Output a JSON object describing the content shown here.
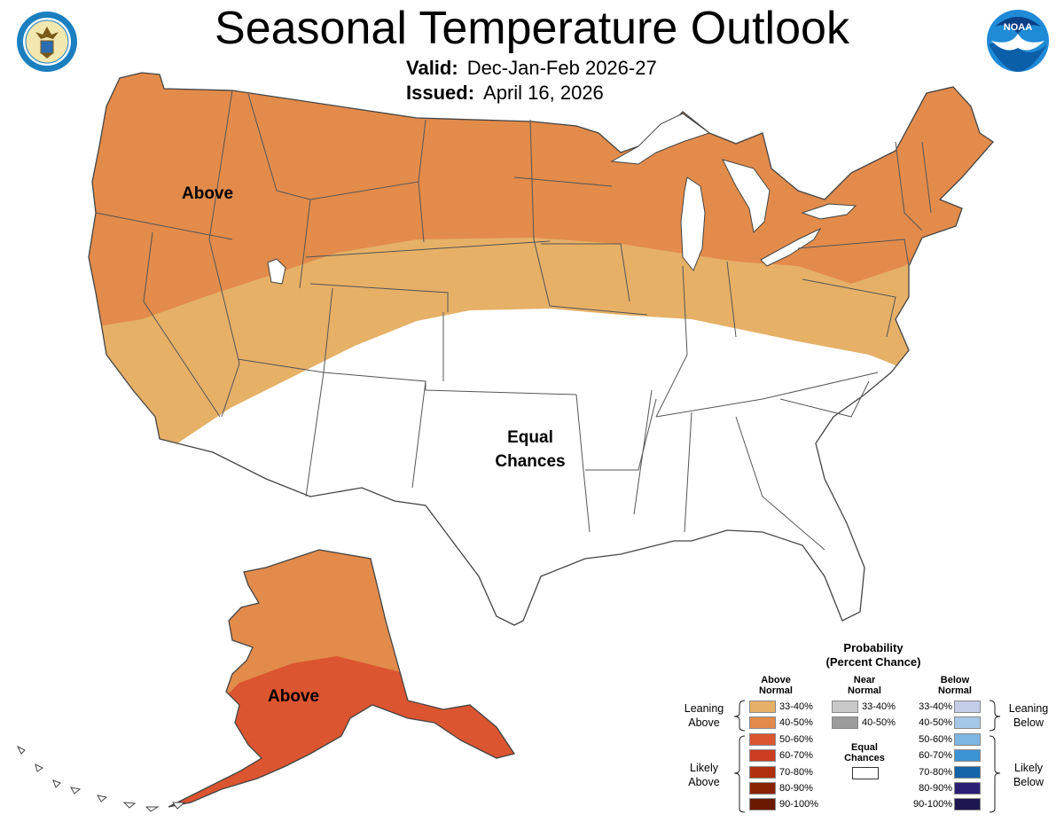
{
  "header": {
    "title": "Seasonal Temperature Outlook",
    "valid_label": "Valid:",
    "valid_value": "Dec-Jan-Feb 2026-27",
    "issued_label": "Issued:",
    "issued_value": "April 16, 2026"
  },
  "logos": {
    "left": "department-of-commerce-seal",
    "right": "noaa-logo",
    "noaa_text": "NOAA"
  },
  "map": {
    "labels": {
      "conus_above": "Above",
      "equal_1": "Equal",
      "equal_2": "Chances",
      "alaska_above": "Above"
    },
    "categories": {
      "conus_north": {
        "category": "Above Normal",
        "probability": "40-50%",
        "color": "#E28B4B"
      },
      "conus_middle": {
        "category": "Above Normal",
        "probability": "33-40%",
        "color": "#E6B067"
      },
      "conus_south": {
        "category": "Equal Chances",
        "color": "#FFFFFF"
      },
      "alaska_north": {
        "category": "Above Normal",
        "probability": "40-50%",
        "color": "#E28B4B"
      },
      "alaska_south": {
        "category": "Above Normal",
        "probability": "50-60%",
        "color": "#DB5530"
      }
    }
  },
  "legend": {
    "title1": "Probability",
    "title2": "(Percent Chance)",
    "above_h1": "Above",
    "above_h2": "Normal",
    "near_h1": "Near",
    "near_h2": "Normal",
    "below_h1": "Below",
    "below_h2": "Normal",
    "leaning_above_1": "Leaning",
    "leaning_above_2": "Above",
    "likely_above_1": "Likely",
    "likely_above_2": "Above",
    "leaning_below_1": "Leaning",
    "leaning_below_2": "Below",
    "likely_below_1": "Likely",
    "likely_below_2": "Below",
    "equal_1": "Equal",
    "equal_2": "Chances",
    "above": [
      {
        "label": "33-40%",
        "color": "#E6B067"
      },
      {
        "label": "40-50%",
        "color": "#E28B4B"
      },
      {
        "label": "50-60%",
        "color": "#DB5530"
      },
      {
        "label": "60-70%",
        "color": "#CC3D22"
      },
      {
        "label": "70-80%",
        "color": "#B0300F"
      },
      {
        "label": "80-90%",
        "color": "#8A2204"
      },
      {
        "label": "90-100%",
        "color": "#6B1A02"
      }
    ],
    "near": [
      {
        "label": "33-40%",
        "color": "#C8C8C8"
      },
      {
        "label": "40-50%",
        "color": "#9B9B9B"
      }
    ],
    "below": [
      {
        "label": "33-40%",
        "color": "#C3CDE8"
      },
      {
        "label": "40-50%",
        "color": "#A6C8E8"
      },
      {
        "label": "50-60%",
        "color": "#7DB6E2"
      },
      {
        "label": "60-70%",
        "color": "#3D94D4"
      },
      {
        "label": "70-80%",
        "color": "#1464AA"
      },
      {
        "label": "80-90%",
        "color": "#2B1F75"
      },
      {
        "label": "90-100%",
        "color": "#1E1650"
      }
    ]
  }
}
